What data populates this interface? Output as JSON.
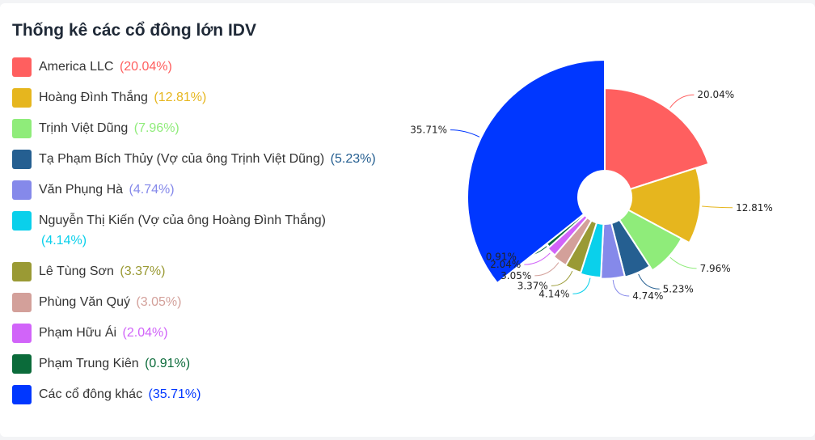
{
  "title": "Thống kê các cổ đông lớn IDV",
  "chart_data": {
    "type": "pie",
    "title": "Thống kê các cổ đông lớn IDV",
    "legend_position": "left",
    "rose": true,
    "categories": [
      "America LLC",
      "Hoàng Đình Thắng",
      "Trịnh Việt Dũng",
      "Tạ Phạm Bích Thủy (Vợ của ông Trịnh Việt Dũng)",
      "Văn Phụng Hà",
      "Nguyễn Thị Kiến (Vợ của ông Hoàng Đình Thắng)",
      "Lê Tùng Sơn",
      "Phùng Văn Quý",
      "Phạm Hữu Ái",
      "Phạm Trung Kiên",
      "Các cổ đông khác"
    ],
    "values": [
      20.04,
      12.81,
      7.96,
      5.23,
      4.74,
      4.14,
      3.37,
      3.05,
      2.04,
      0.91,
      35.71
    ],
    "pct_labels": [
      "(20.04%)",
      "(12.81%)",
      "(7.96%)",
      "(5.23%)",
      "(4.74%)",
      "(4.14%)",
      "(3.37%)",
      "(3.05%)",
      "(2.04%)",
      "(0.91%)",
      "(35.71%)"
    ],
    "data_labels": [
      "20.04%",
      "12.81%",
      "7.96%",
      "5.23%",
      "4.74%",
      "4.14%",
      "3.37%",
      "3.05%",
      "2.04%",
      "0.91%",
      "35.71%"
    ],
    "colors": [
      "#ff5f5f",
      "#e6b61e",
      "#8fec7a",
      "#255f91",
      "#8589ea",
      "#0ad0eb",
      "#9a9a34",
      "#d3a09a",
      "#d164f9",
      "#0b6b3a",
      "#0037ff"
    ]
  }
}
